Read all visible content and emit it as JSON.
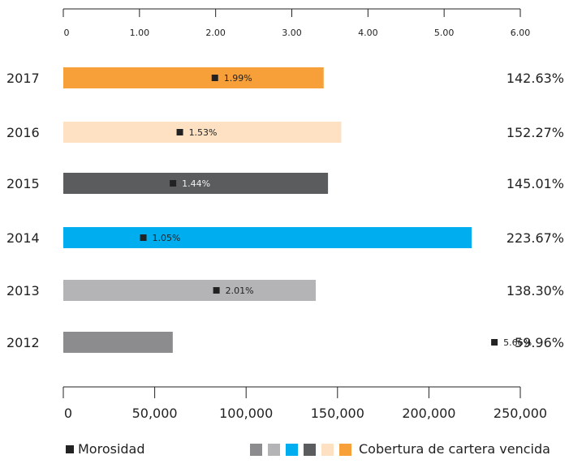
{
  "chart_data": {
    "type": "bar",
    "categories": [
      "2017",
      "2016",
      "2015",
      "2014",
      "2013",
      "2012"
    ],
    "series": [
      {
        "name": "Cobertura de cartera vencida",
        "values": [
          142.63,
          152.27,
          145.01,
          223.67,
          138.3,
          59.96
        ],
        "labels": [
          "142.63%",
          "152.27%",
          "145.01%",
          "223.67%",
          "138.30%",
          "59.96%"
        ]
      },
      {
        "name": "Morosidad",
        "values": [
          1.99,
          1.53,
          1.44,
          1.05,
          2.01,
          5.66
        ],
        "labels": [
          "1.99%",
          "1.53%",
          "1.44%",
          "1.05%",
          "2.01%",
          "5.66%"
        ]
      }
    ],
    "bar_scale_max": 223.67,
    "top_axis": {
      "range": [
        0,
        6
      ],
      "ticks": [
        "0",
        "1.00",
        "2.00",
        "3.00",
        "4.00",
        "5.00",
        "6.00"
      ]
    },
    "bottom_axis": {
      "range": [
        0,
        250000
      ],
      "ticks": [
        "0",
        "50,000",
        "100,000",
        "150,000",
        "200,000",
        "250,000"
      ]
    },
    "bar_colors": [
      "#f7a03a",
      "#fde1c2",
      "#5b5c5e",
      "#00aeef",
      "#b4b4b6",
      "#8c8c8e"
    ],
    "marker_color": "#222222",
    "legend": {
      "position": "bottom",
      "morosidad_label": "Morosidad",
      "cobertura_label": "Cobertura de cartera vencida",
      "swatch_colors": [
        "#8c8c8e",
        "#b4b4b6",
        "#00aeef",
        "#5b5c5e",
        "#fde1c2",
        "#f7a03a"
      ]
    }
  }
}
